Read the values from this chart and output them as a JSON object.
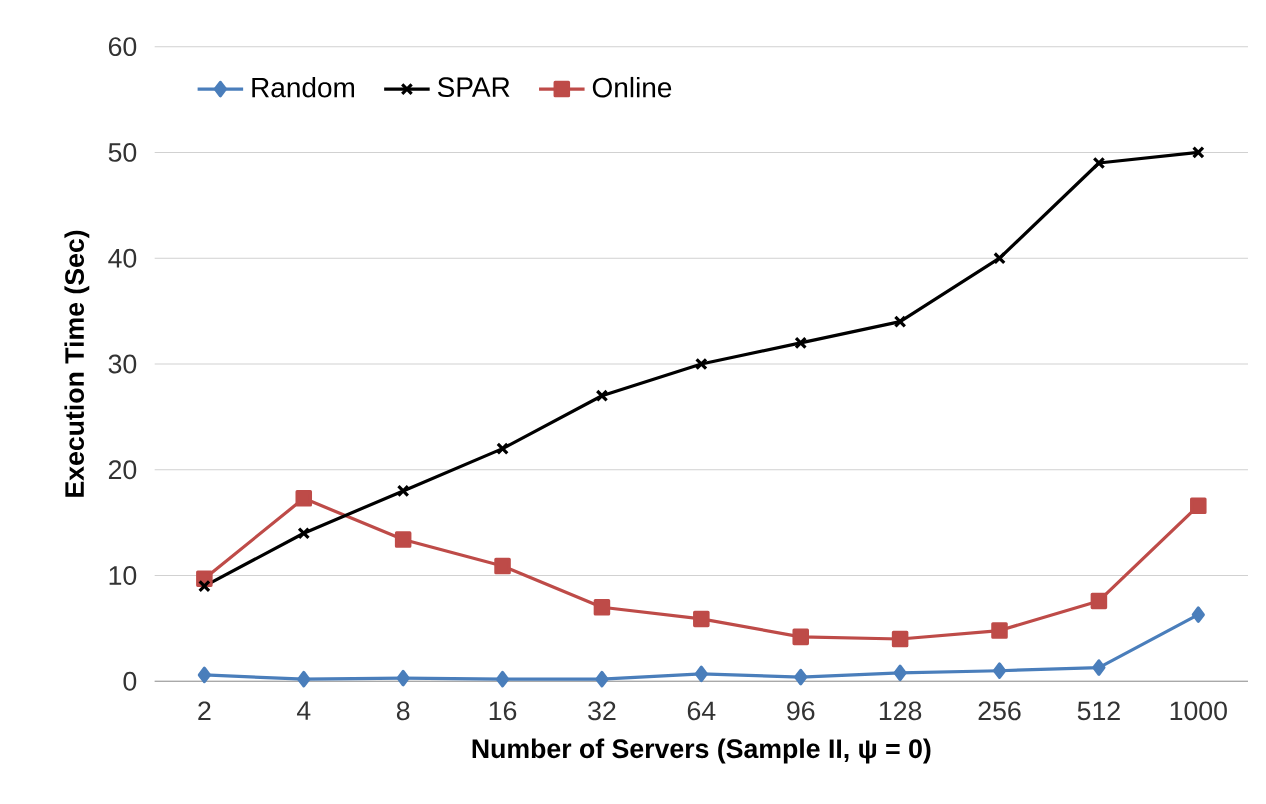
{
  "chart_data": {
    "type": "line",
    "xlabel": "**Number of Servers (Sample II,  ψ = 0)**",
    "ylabel": "**Execution Time (Sec)**",
    "categories": [
      "2",
      "4",
      "8",
      "16",
      "32",
      "64",
      "96",
      "128",
      "256",
      "512",
      "1000"
    ],
    "series": [
      {
        "name": "Random",
        "color": "#4a7ebb",
        "marker": "diamond",
        "values": [
          0.6,
          0.2,
          0.3,
          0.2,
          0.2,
          0.7,
          0.4,
          0.8,
          1.0,
          1.3,
          6.3
        ]
      },
      {
        "name": "SPAR",
        "color": "#000000",
        "marker": "cross",
        "values": [
          9,
          14,
          18,
          22,
          27,
          30,
          32,
          34,
          40,
          49,
          50
        ]
      },
      {
        "name": "Online",
        "color": "#be4b48",
        "marker": "square",
        "values": [
          9.7,
          17.3,
          13.4,
          10.9,
          7.0,
          5.9,
          4.2,
          4.0,
          4.8,
          7.6,
          16.6
        ]
      }
    ],
    "ylim": [
      0,
      60
    ],
    "yticks": [
      0,
      10,
      20,
      30,
      40,
      50,
      60
    ],
    "grid": "y",
    "legend": "top left",
    "line_style": "solid"
  }
}
